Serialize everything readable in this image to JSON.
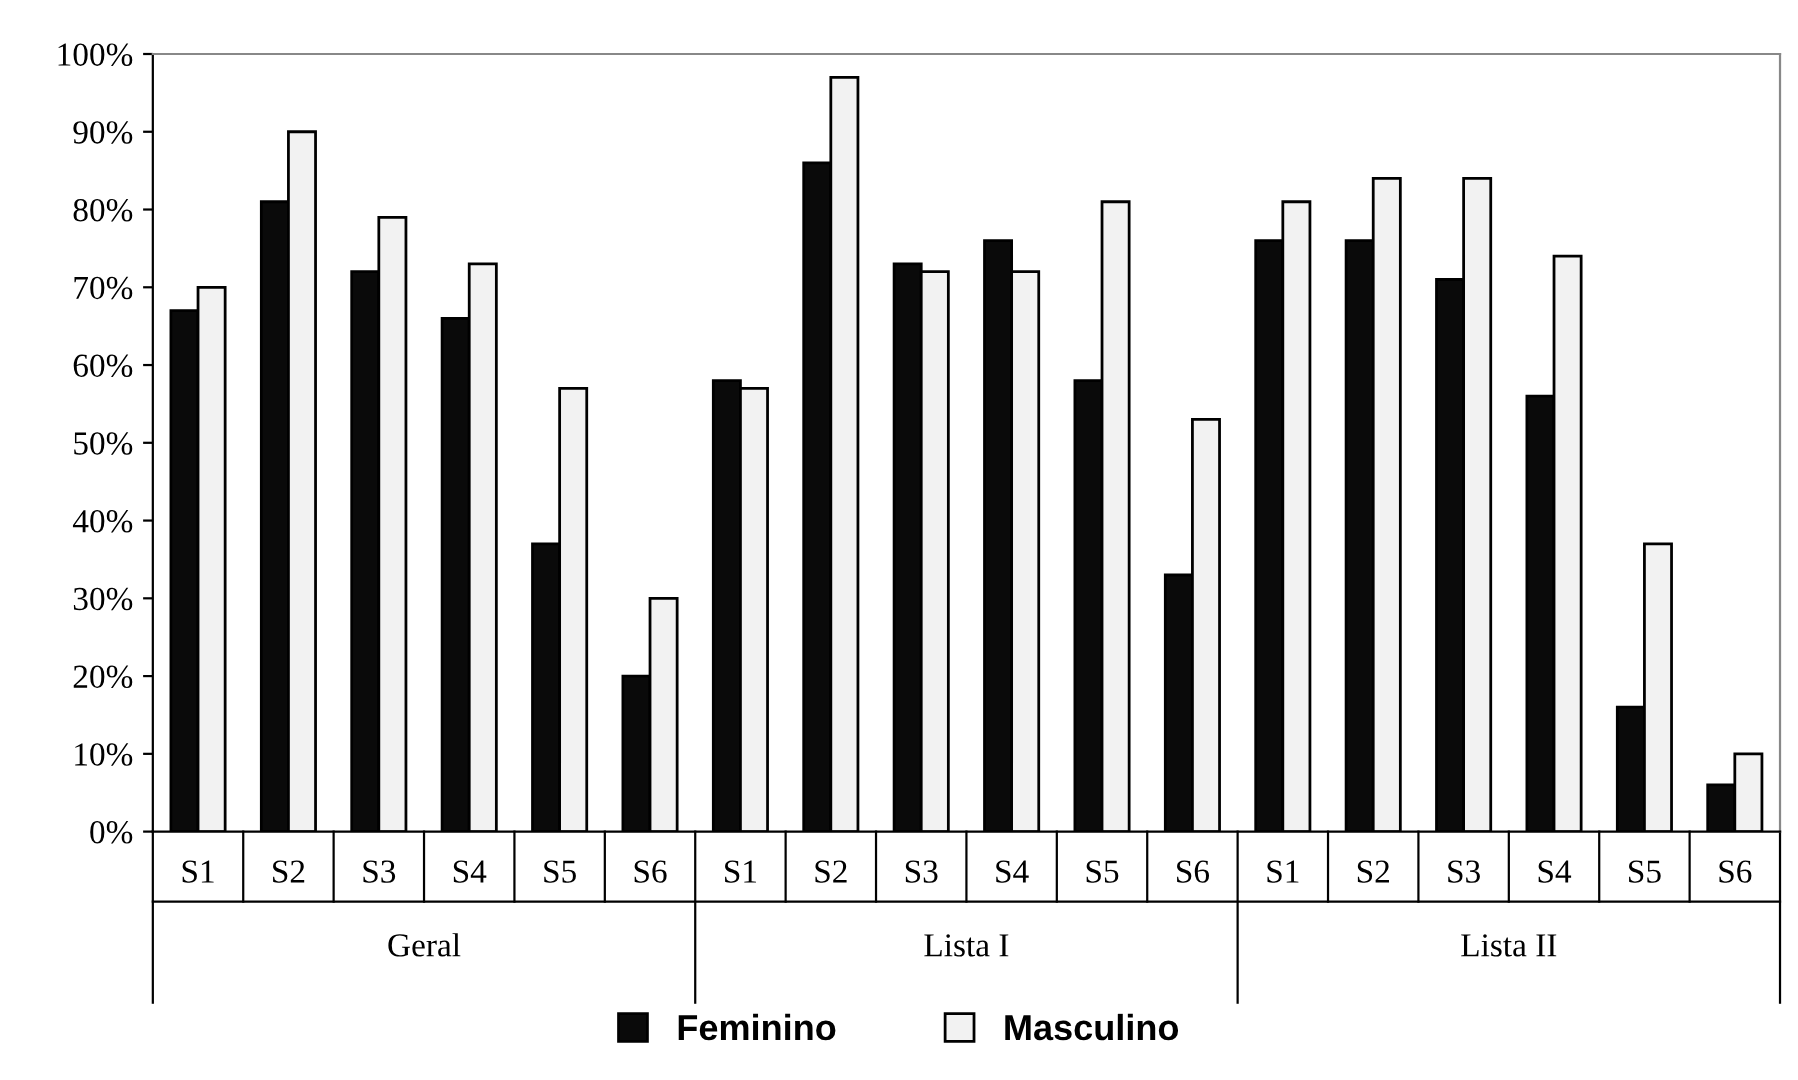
{
  "chart_data": {
    "type": "bar",
    "categories": [
      "S1",
      "S2",
      "S3",
      "S4",
      "S5",
      "S6",
      "S1",
      "S2",
      "S3",
      "S4",
      "S5",
      "S6",
      "S1",
      "S2",
      "S3",
      "S4",
      "S5",
      "S6"
    ],
    "series": [
      {
        "name": "Feminino",
        "color": "#0a0a0a",
        "values": [
          67,
          81,
          72,
          66,
          37,
          20,
          58,
          86,
          73,
          76,
          58,
          33,
          76,
          76,
          71,
          56,
          16,
          6
        ]
      },
      {
        "name": "Masculino",
        "color": "#f2f2f2",
        "values": [
          70,
          90,
          79,
          73,
          57,
          30,
          57,
          97,
          72,
          72,
          81,
          53,
          81,
          84,
          84,
          74,
          37,
          10
        ]
      }
    ],
    "annotations": [
      "Geral",
      "Lista I",
      "Lista II"
    ],
    "ylim": [
      0,
      100
    ],
    "yticks": [
      {
        "value": 0,
        "label": "0%"
      },
      {
        "value": 10,
        "label": "10%"
      },
      {
        "value": 20,
        "label": "20%"
      },
      {
        "value": 30,
        "label": "30%"
      },
      {
        "value": 40,
        "label": "40%"
      },
      {
        "value": 50,
        "label": "50%"
      },
      {
        "value": 60,
        "label": "60%"
      },
      {
        "value": 70,
        "label": "70%"
      },
      {
        "value": 80,
        "label": "80%"
      },
      {
        "value": 90,
        "label": "90%"
      },
      {
        "value": 100,
        "label": "100%"
      }
    ],
    "grid": false,
    "legend": "bottom"
  }
}
